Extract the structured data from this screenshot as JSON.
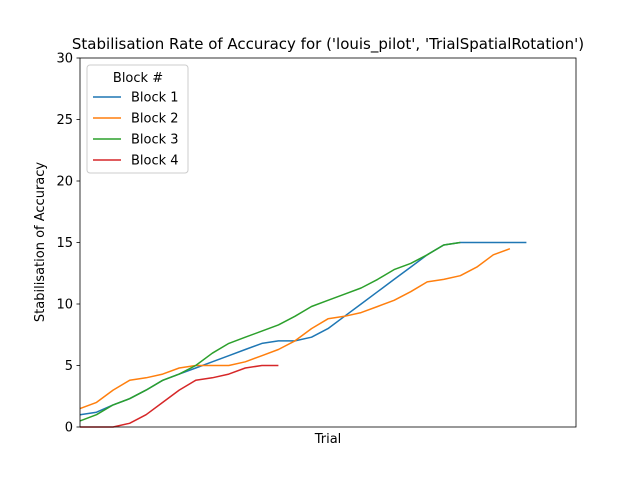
{
  "chart_data": {
    "type": "line",
    "title": "Stabilisation Rate of Accuracy for ('louis_pilot', 'TrialSpatialRotation')",
    "xlabel": "Trial",
    "ylabel": "Stabilisation of Accuracy",
    "xlim": [
      0,
      30
    ],
    "ylim": [
      0,
      30
    ],
    "yticks": [
      0,
      5,
      10,
      15,
      20,
      25,
      30
    ],
    "xticks_shown": false,
    "grid": false,
    "legend": {
      "title": "Block #",
      "placement": "top-left"
    },
    "series": [
      {
        "name": "Block 1",
        "color": "#1f77b4",
        "x": [
          0,
          1,
          2,
          3,
          4,
          5,
          6,
          7,
          8,
          9,
          10,
          11,
          12,
          13,
          14,
          15,
          16,
          17,
          18,
          19,
          20,
          21,
          22,
          23,
          24,
          25,
          26,
          27
        ],
        "y": [
          1.0,
          1.2,
          1.8,
          2.3,
          3.0,
          3.8,
          4.3,
          4.8,
          5.3,
          5.8,
          6.3,
          6.8,
          7.0,
          7.0,
          7.3,
          8.0,
          9.0,
          10.0,
          11.0,
          12.0,
          13.0,
          14.0,
          14.8,
          15.0,
          15.0,
          15.0,
          15.0,
          15.0
        ]
      },
      {
        "name": "Block 2",
        "color": "#ff7f0e",
        "x": [
          0,
          1,
          2,
          3,
          4,
          5,
          6,
          7,
          8,
          9,
          10,
          11,
          12,
          13,
          14,
          15,
          16,
          17,
          18,
          19,
          20,
          21,
          22,
          23,
          24,
          25,
          26
        ],
        "y": [
          1.5,
          2.0,
          3.0,
          3.8,
          4.0,
          4.3,
          4.8,
          5.0,
          5.0,
          5.0,
          5.3,
          5.8,
          6.3,
          7.0,
          8.0,
          8.8,
          9.0,
          9.3,
          9.8,
          10.3,
          11.0,
          11.8,
          12.0,
          12.3,
          13.0,
          14.0,
          14.5
        ]
      },
      {
        "name": "Block 3",
        "color": "#2ca02c",
        "x": [
          0,
          1,
          2,
          3,
          4,
          5,
          6,
          7,
          8,
          9,
          10,
          11,
          12,
          13,
          14,
          15,
          16,
          17,
          18,
          19,
          20,
          21,
          22,
          23
        ],
        "y": [
          0.5,
          1.0,
          1.8,
          2.3,
          3.0,
          3.8,
          4.3,
          5.0,
          6.0,
          6.8,
          7.3,
          7.8,
          8.3,
          9.0,
          9.8,
          10.3,
          10.8,
          11.3,
          12.0,
          12.8,
          13.3,
          14.0,
          14.8,
          15.0
        ]
      },
      {
        "name": "Block 4",
        "color": "#d62728",
        "x": [
          0,
          1,
          2,
          3,
          4,
          5,
          6,
          7,
          8,
          9,
          10,
          11,
          12
        ],
        "y": [
          0,
          0,
          0,
          0.3,
          1.0,
          2.0,
          3.0,
          3.8,
          4.0,
          4.3,
          4.8,
          5.0,
          5.0
        ]
      }
    ]
  }
}
